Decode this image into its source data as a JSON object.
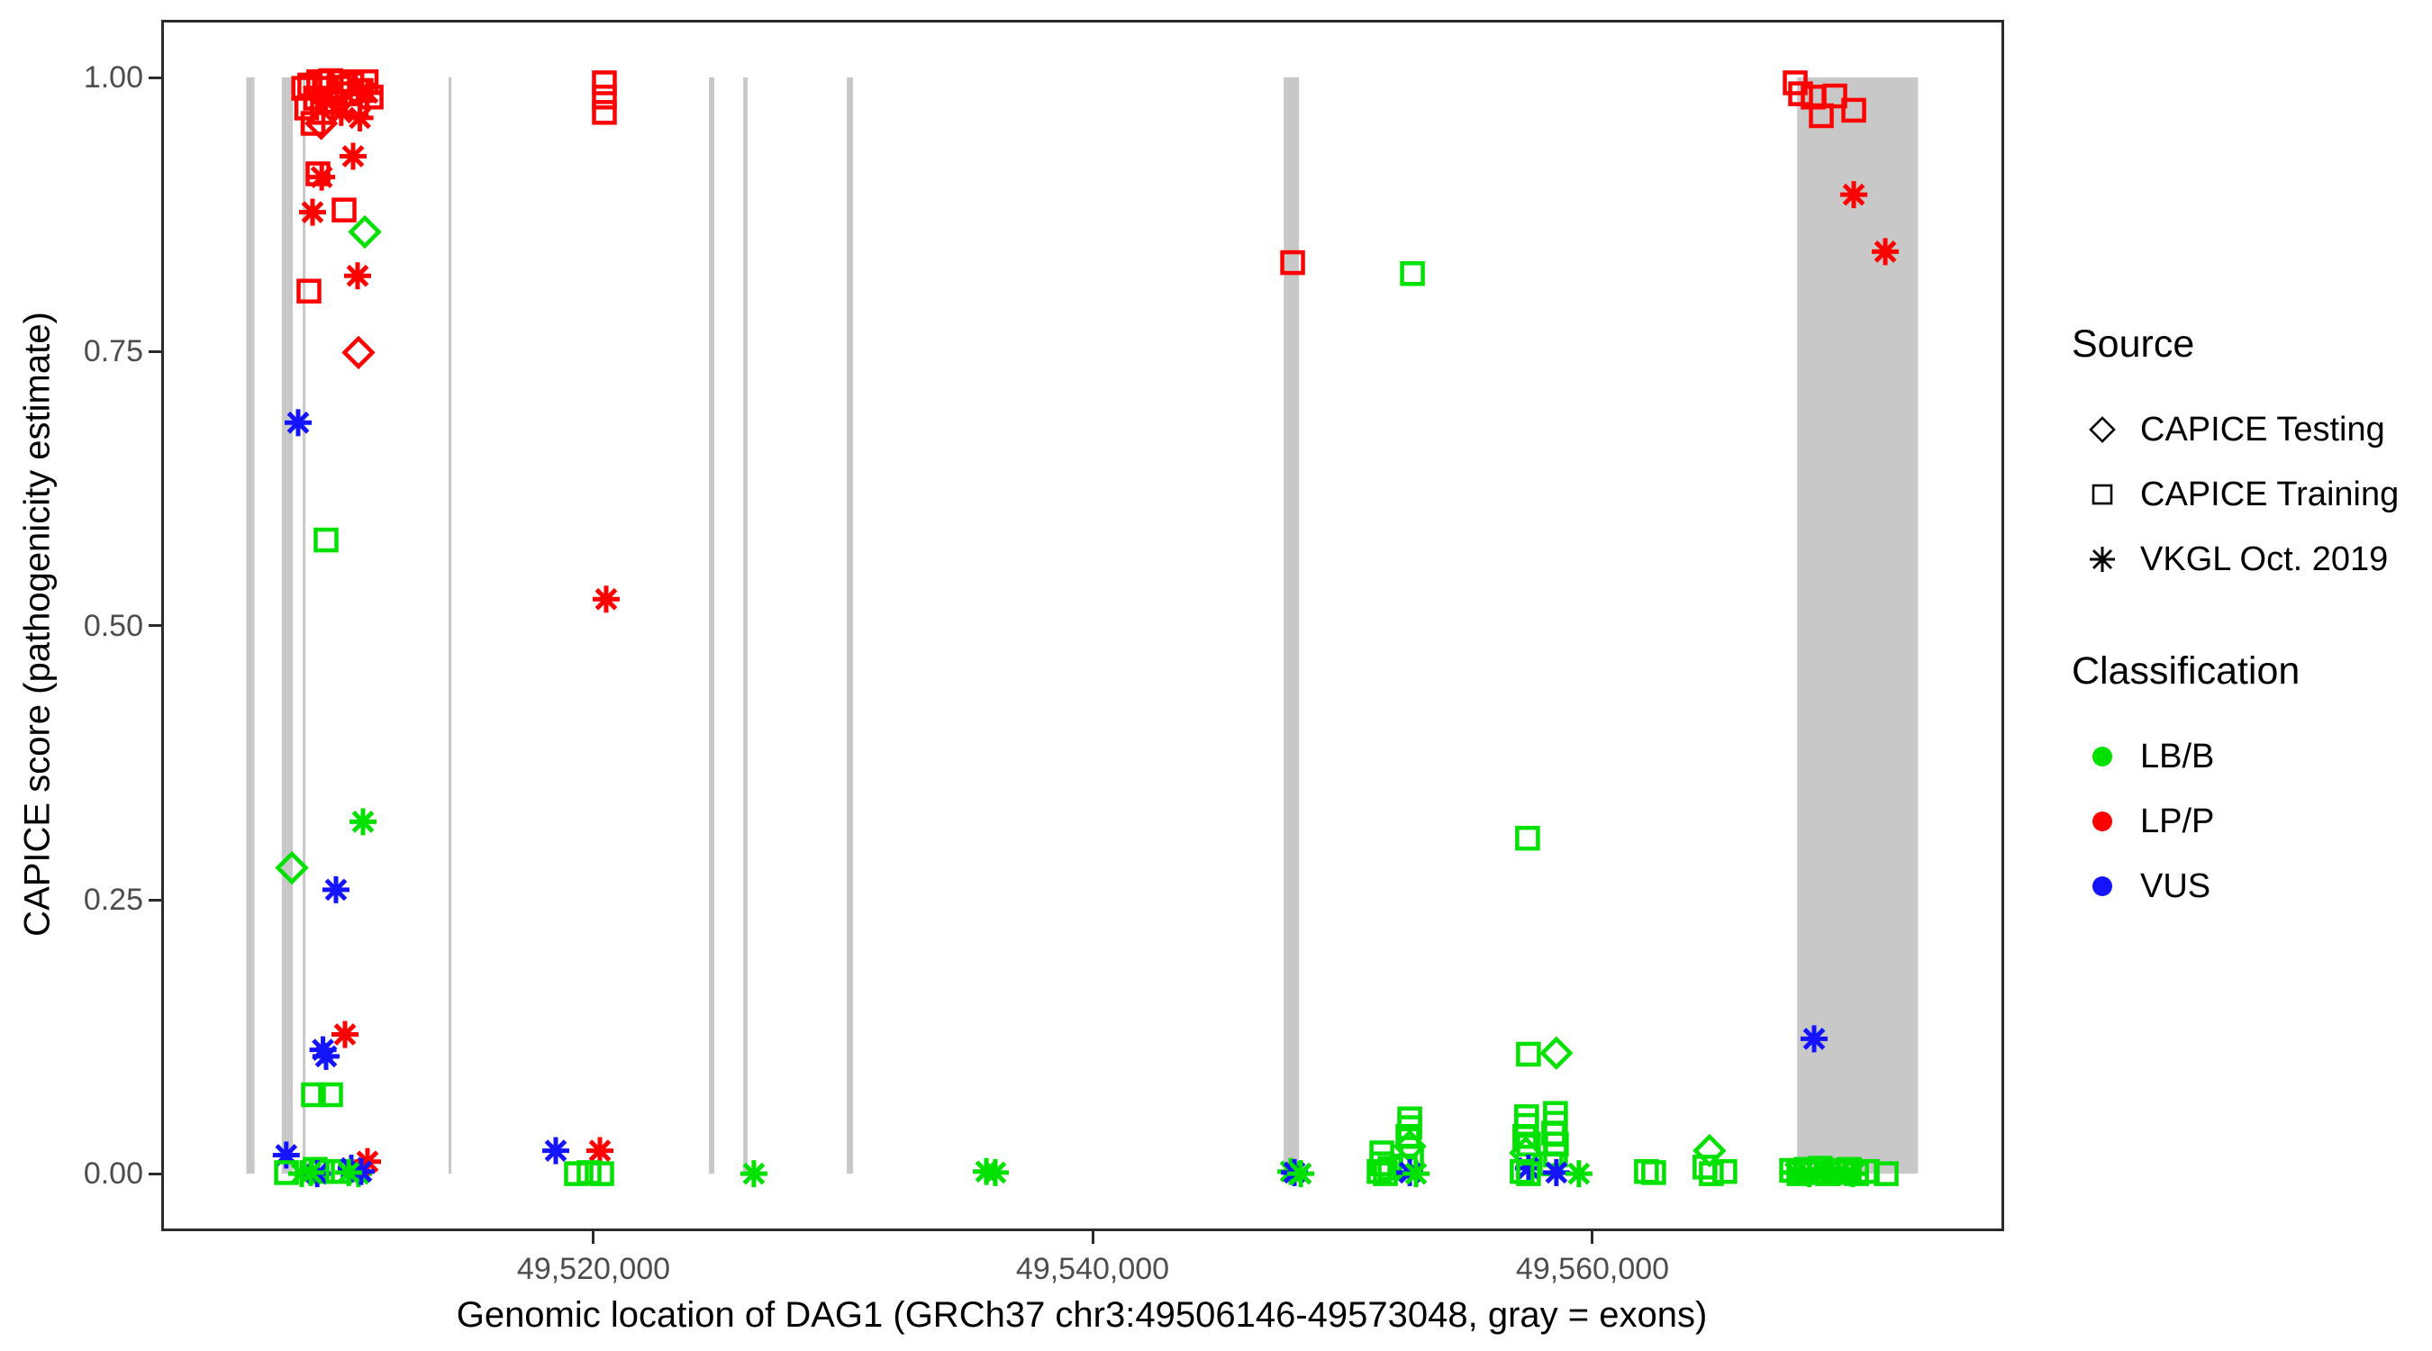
{
  "figure": {
    "y_axis": {
      "title": "CAPICE score (pathogenicity estimate)",
      "ticks": [
        {
          "value": 1.0,
          "label": "1.00"
        },
        {
          "value": 0.75,
          "label": "0.75"
        },
        {
          "value": 0.5,
          "label": "0.50"
        },
        {
          "value": 0.25,
          "label": "0.25"
        },
        {
          "value": 0.0,
          "label": "0.00"
        }
      ]
    },
    "x_axis": {
      "title": "Genomic location of DAG1 (GRCh37 chr3:49506146-49573048, gray = exons)",
      "ticks": [
        {
          "value": 49520000,
          "label": "49,520,000"
        },
        {
          "value": 49540000,
          "label": "49,540,000"
        },
        {
          "value": 49560000,
          "label": "49,560,000"
        }
      ]
    },
    "legend": {
      "source": {
        "title": "Source",
        "items": [
          {
            "label": "CAPICE Testing",
            "shape": "diamond"
          },
          {
            "label": "CAPICE Training",
            "shape": "square"
          },
          {
            "label": "VKGL Oct. 2019",
            "shape": "asterisk"
          }
        ]
      },
      "classification": {
        "title": "Classification",
        "items": [
          {
            "label": "LB/B",
            "color": "#00E100"
          },
          {
            "label": "LP/P",
            "color": "#FF0000"
          },
          {
            "label": "VUS",
            "color": "#1414FF"
          }
        ]
      }
    }
  },
  "chart_data": {
    "type": "scatter",
    "title": "",
    "xlabel": "Genomic location of DAG1 (GRCh37 chr3:49506146-49573048, gray = exons)",
    "ylabel": "CAPICE score (pathogenicity estimate)",
    "x_data_range": [
      49506146,
      49573048
    ],
    "x_axis_span": [
      49502801,
      49576393
    ],
    "y_axis_span": [
      -0.05,
      1.05
    ],
    "grid": false,
    "legend_position": "right",
    "classification_colors": {
      "LB/B": "#00E100",
      "LP/P": "#FF0000",
      "VUS": "#1414FF"
    },
    "source_shapes": {
      "CAPICE Testing": "diamond",
      "CAPICE Training": "square",
      "VKGL Oct. 2019": "asterisk"
    },
    "exon_regions_gray": [
      [
        49506100,
        49506430
      ],
      [
        49507520,
        49507960
      ],
      [
        49508360,
        49508470
      ],
      [
        49514200,
        49514315
      ],
      [
        49524630,
        49524845
      ],
      [
        49526000,
        49526180
      ],
      [
        49530150,
        49530400
      ],
      [
        49547650,
        49548260
      ],
      [
        49568210,
        49573048
      ]
    ],
    "points_format": [
      "genomic_position",
      "capice_score",
      "classification",
      "source_shape"
    ],
    "points": [
      [
        49508400,
        0.99,
        "LP/P",
        "square"
      ],
      [
        49508520,
        0.972,
        "LP/P",
        "square"
      ],
      [
        49508640,
        0.993,
        "LP/P",
        "square"
      ],
      [
        49508770,
        0.958,
        "LP/P",
        "square"
      ],
      [
        49508880,
        0.981,
        "LP/P",
        "square"
      ],
      [
        49509000,
        0.996,
        "LP/P",
        "square"
      ],
      [
        49509150,
        0.968,
        "LP/P",
        "square"
      ],
      [
        49509300,
        0.99,
        "LP/P",
        "square"
      ],
      [
        49509480,
        0.997,
        "LP/P",
        "square"
      ],
      [
        49509650,
        0.978,
        "LP/P",
        "square"
      ],
      [
        49509800,
        0.991,
        "LP/P",
        "square"
      ],
      [
        49509970,
        0.996,
        "LP/P",
        "square"
      ],
      [
        49510150,
        0.985,
        "LP/P",
        "square"
      ],
      [
        49510330,
        0.994,
        "LP/P",
        "square"
      ],
      [
        49510500,
        0.976,
        "LP/P",
        "square"
      ],
      [
        49510700,
        0.988,
        "LP/P",
        "square"
      ],
      [
        49510900,
        0.996,
        "LP/P",
        "square"
      ],
      [
        49511100,
        0.982,
        "LP/P",
        "square"
      ],
      [
        49509250,
        0.979,
        "LP/P",
        "asterisk"
      ],
      [
        49509900,
        0.968,
        "LP/P",
        "asterisk"
      ],
      [
        49510650,
        0.963,
        "LP/P",
        "asterisk"
      ],
      [
        49510950,
        0.986,
        "LP/P",
        "asterisk"
      ],
      [
        49509100,
        0.958,
        "LP/P",
        "diamond"
      ],
      [
        49510377,
        0.928,
        "LP/P",
        "asterisk"
      ],
      [
        49508970,
        0.912,
        "LP/P",
        "square"
      ],
      [
        49509120,
        0.909,
        "LP/P",
        "asterisk"
      ],
      [
        49508753,
        0.877,
        "LP/P",
        "asterisk"
      ],
      [
        49510016,
        0.879,
        "LP/P",
        "square"
      ],
      [
        49510846,
        0.859,
        "LB/B",
        "diamond"
      ],
      [
        49510557,
        0.819,
        "LP/P",
        "asterisk"
      ],
      [
        49508609,
        0.805,
        "LP/P",
        "square"
      ],
      [
        49510593,
        0.749,
        "LP/P",
        "diamond"
      ],
      [
        49508176,
        0.685,
        "VUS",
        "asterisk"
      ],
      [
        49509294,
        0.578,
        "LB/B",
        "square"
      ],
      [
        49510774,
        0.321,
        "LB/B",
        "asterisk"
      ],
      [
        49507924,
        0.279,
        "LB/B",
        "diamond"
      ],
      [
        49509691,
        0.259,
        "VUS",
        "asterisk"
      ],
      [
        49510052,
        0.127,
        "LP/P",
        "asterisk"
      ],
      [
        49509294,
        0.107,
        "VUS",
        "asterisk"
      ],
      [
        49509170,
        0.113,
        "VUS",
        "asterisk"
      ],
      [
        49508789,
        0.072,
        "LB/B",
        "square"
      ],
      [
        49509475,
        0.072,
        "LB/B",
        "square"
      ],
      [
        49507700,
        0.017,
        "VUS",
        "asterisk"
      ],
      [
        49507710,
        0.001,
        "LB/B",
        "square"
      ],
      [
        49508320,
        0.0,
        "LB/B",
        "asterisk"
      ],
      [
        49508860,
        0.004,
        "LB/B",
        "square"
      ],
      [
        49509150,
        0.002,
        "LB/B",
        "square"
      ],
      [
        49508940,
        0.0,
        "VUS",
        "asterisk"
      ],
      [
        49508680,
        0.001,
        "LB/B",
        "asterisk"
      ],
      [
        49509764,
        0.002,
        "LB/B",
        "square"
      ],
      [
        49510305,
        0.005,
        "VUS",
        "asterisk"
      ],
      [
        49510593,
        0.0,
        "LB/B",
        "asterisk"
      ],
      [
        49510954,
        0.011,
        "LP/P",
        "asterisk"
      ],
      [
        49510700,
        0.002,
        "VUS",
        "asterisk"
      ],
      [
        49510200,
        0.001,
        "LB/B",
        "asterisk"
      ],
      [
        49518493,
        0.021,
        "VUS",
        "asterisk"
      ],
      [
        49520261,
        0.021,
        "LP/P",
        "asterisk"
      ],
      [
        49519323,
        0.0,
        "LB/B",
        "square"
      ],
      [
        49519828,
        0.001,
        "LB/B",
        "square"
      ],
      [
        49520333,
        0.0,
        "LB/B",
        "square"
      ],
      [
        49520441,
        0.995,
        "LP/P",
        "square"
      ],
      [
        49520441,
        0.982,
        "LP/P",
        "square"
      ],
      [
        49520441,
        0.968,
        "LP/P",
        "square"
      ],
      [
        49520513,
        0.524,
        "LP/P",
        "asterisk"
      ],
      [
        49526428,
        0.0,
        "LB/B",
        "asterisk"
      ],
      [
        49535737,
        0.002,
        "LB/B",
        "asterisk"
      ],
      [
        49536097,
        0.001,
        "LB/B",
        "asterisk"
      ],
      [
        49548005,
        0.831,
        "LP/P",
        "square"
      ],
      [
        49547933,
        0.002,
        "LB/B",
        "asterisk"
      ],
      [
        49548077,
        0.001,
        "VUS",
        "asterisk"
      ],
      [
        49548330,
        0.0,
        "LB/B",
        "asterisk"
      ],
      [
        49552803,
        0.821,
        "LB/B",
        "square"
      ],
      [
        49551577,
        0.019,
        "LB/B",
        "square"
      ],
      [
        49551577,
        0.009,
        "LB/B",
        "square"
      ],
      [
        49551468,
        0.002,
        "LB/B",
        "square"
      ],
      [
        49551721,
        0.0,
        "LB/B",
        "square"
      ],
      [
        49551901,
        0.005,
        "LB/B",
        "square"
      ],
      [
        49552695,
        0.05,
        "LB/B",
        "square"
      ],
      [
        49552695,
        0.042,
        "LB/B",
        "square"
      ],
      [
        49552622,
        0.034,
        "LB/B",
        "square"
      ],
      [
        49552695,
        0.025,
        "LB/B",
        "diamond"
      ],
      [
        49552767,
        0.016,
        "LB/B",
        "square"
      ],
      [
        49552515,
        0.007,
        "LB/B",
        "square"
      ],
      [
        49552695,
        0.001,
        "VUS",
        "asterisk"
      ],
      [
        49552947,
        0.0,
        "LB/B",
        "asterisk"
      ],
      [
        49557414,
        0.306,
        "LB/B",
        "square"
      ],
      [
        49557450,
        0.109,
        "LB/B",
        "square"
      ],
      [
        49558568,
        0.11,
        "LB/B",
        "diamond"
      ],
      [
        49557377,
        0.052,
        "LB/B",
        "square"
      ],
      [
        49557377,
        0.044,
        "LB/B",
        "square"
      ],
      [
        49557305,
        0.034,
        "LB/B",
        "square"
      ],
      [
        49557450,
        0.027,
        "LB/B",
        "square"
      ],
      [
        49557341,
        0.019,
        "LB/B",
        "diamond"
      ],
      [
        49557450,
        0.005,
        "VUS",
        "asterisk"
      ],
      [
        49557450,
        0.0,
        "LB/B",
        "square"
      ],
      [
        49557197,
        0.002,
        "LB/B",
        "square"
      ],
      [
        49558532,
        0.055,
        "LB/B",
        "square"
      ],
      [
        49558532,
        0.046,
        "LB/B",
        "square"
      ],
      [
        49558460,
        0.037,
        "LB/B",
        "square"
      ],
      [
        49558568,
        0.027,
        "LB/B",
        "square"
      ],
      [
        49558532,
        0.017,
        "LB/B",
        "square"
      ],
      [
        49558352,
        0.009,
        "LB/B",
        "square"
      ],
      [
        49558568,
        0.001,
        "VUS",
        "asterisk"
      ],
      [
        49559470,
        0.0,
        "LB/B",
        "asterisk"
      ],
      [
        49562175,
        0.002,
        "LB/B",
        "square"
      ],
      [
        49562464,
        0.001,
        "LB/B",
        "square"
      ],
      [
        49564701,
        0.021,
        "LB/B",
        "diamond"
      ],
      [
        49564520,
        0.006,
        "LB/B",
        "square"
      ],
      [
        49564773,
        0.0,
        "LB/B",
        "square"
      ],
      [
        49565314,
        0.002,
        "LB/B",
        "square"
      ],
      [
        49568133,
        0.995,
        "LP/P",
        "square"
      ],
      [
        49568349,
        0.985,
        "LP/P",
        "square"
      ],
      [
        49568854,
        0.982,
        "LP/P",
        "square"
      ],
      [
        49569179,
        0.965,
        "LP/P",
        "square"
      ],
      [
        49569720,
        0.983,
        "LP/P",
        "square"
      ],
      [
        49570478,
        0.97,
        "LP/P",
        "square"
      ],
      [
        49570478,
        0.893,
        "LP/P",
        "asterisk"
      ],
      [
        49571741,
        0.841,
        "LP/P",
        "asterisk"
      ],
      [
        49568890,
        0.123,
        "VUS",
        "asterisk"
      ],
      [
        49567990,
        0.003,
        "LB/B",
        "square"
      ],
      [
        49568280,
        0.0,
        "LB/B",
        "square"
      ],
      [
        49568560,
        0.004,
        "LB/B",
        "square"
      ],
      [
        49568850,
        0.001,
        "LB/B",
        "square"
      ],
      [
        49569140,
        0.005,
        "LB/B",
        "square"
      ],
      [
        49569430,
        0.0,
        "LB/B",
        "square"
      ],
      [
        49569720,
        0.003,
        "LB/B",
        "square"
      ],
      [
        49570010,
        0.001,
        "LB/B",
        "square"
      ],
      [
        49570300,
        0.004,
        "LB/B",
        "square"
      ],
      [
        49570590,
        0.0,
        "LB/B",
        "square"
      ],
      [
        49568140,
        0.001,
        "LB/B",
        "asterisk"
      ],
      [
        49568700,
        0.0,
        "LB/B",
        "asterisk"
      ],
      [
        49569280,
        0.002,
        "LB/B",
        "asterisk"
      ],
      [
        49569860,
        0.001,
        "LB/B",
        "asterisk"
      ],
      [
        49570440,
        0.0,
        "LB/B",
        "asterisk"
      ],
      [
        49571020,
        0.002,
        "LB/B",
        "square"
      ],
      [
        49571777,
        0.0,
        "LB/B",
        "square"
      ]
    ]
  }
}
